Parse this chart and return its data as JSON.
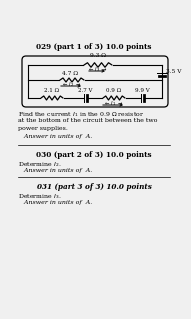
{
  "background_color": "#f0f0f0",
  "title1": "029 (part 1 of 3) 10.0 points",
  "title2": "030 (part 2 of 3) 10.0 points",
  "title3": "031 (part 3 of 3) 10.0 points",
  "R_top": "9.3 Ω",
  "R_mid": "4.7 Ω",
  "R_bot1": "2.1 Ω",
  "R_bot2": "0.9 Ω",
  "V_right": "3.5 V",
  "V_bot_left": "2.7 V",
  "V_bot_right": "9.9 V",
  "text1_line1": "Find the current ",
  "text1_line2": "at the bottom of the circuit between the two",
  "text1_line3": "power supplies.",
  "text1_line4": "   Answer in units of  A.",
  "text2a": "Determine ",
  "text2b": "   Answer in units of  A.",
  "text3a": "Determine ",
  "text3b": "   Answer in units of  A."
}
